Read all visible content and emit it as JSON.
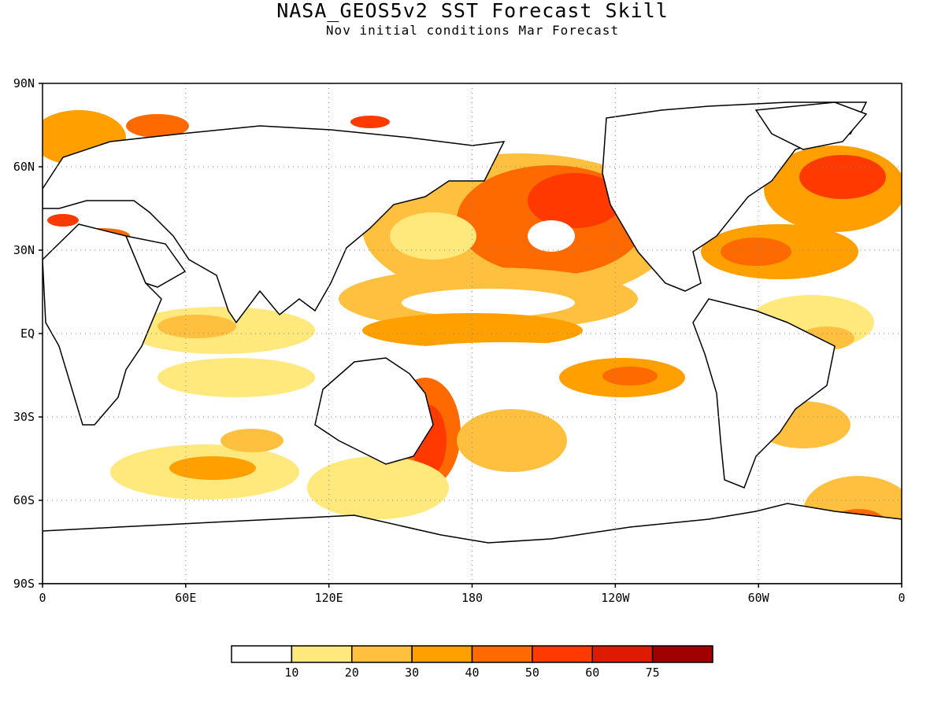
{
  "title": "NASA_GEOS5v2 SST Forecast Skill",
  "subtitle": "Nov initial conditions  Mar Forecast",
  "map": {
    "lat_ticks": [
      "90N",
      "60N",
      "30N",
      "EQ",
      "30S",
      "60S",
      "90S"
    ],
    "lon_ticks": [
      "0",
      "60E",
      "120E",
      "180",
      "120W",
      "60W",
      "0"
    ],
    "grid": "dotted"
  },
  "colorbar": {
    "colors": [
      "#ffffff",
      "#ffe87c",
      "#ffc040",
      "#ffa000",
      "#ff6a00",
      "#ff3a00",
      "#de1a00",
      "#a00000"
    ],
    "labels": [
      "10",
      "20",
      "30",
      "40",
      "50",
      "60",
      "75"
    ]
  },
  "ocean_color": "#ffffff",
  "land_outline_color": "#000000"
}
